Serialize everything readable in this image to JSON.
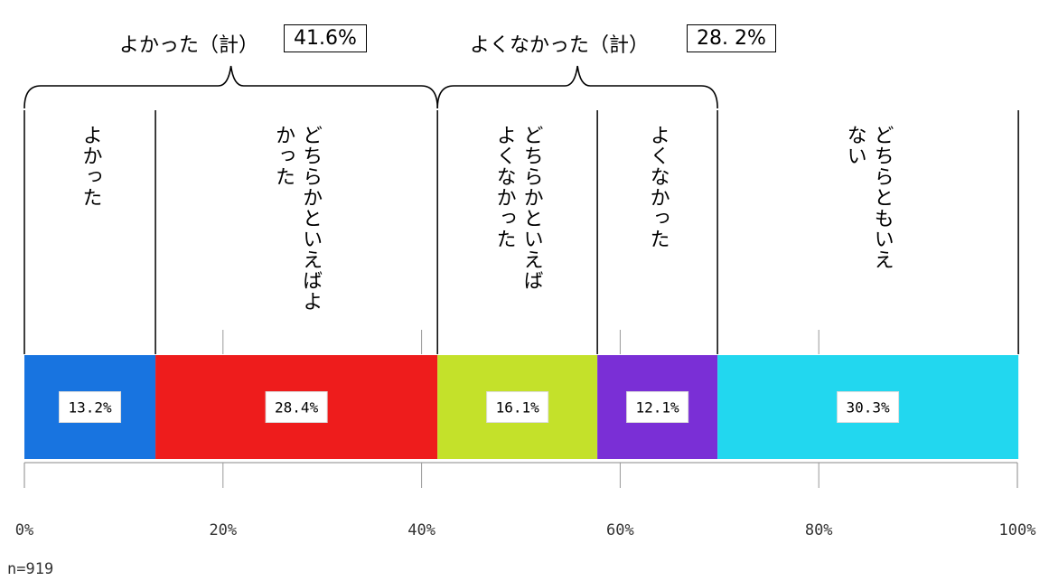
{
  "chart_data": {
    "type": "bar",
    "orientation": "horizontal-stacked-100",
    "categories": [
      "よかった",
      "どちらかといえばよかった",
      "どちらかといえばよくなかった",
      "よくなかった",
      "どちらともいえない"
    ],
    "values": [
      13.2,
      28.4,
      16.1,
      12.1,
      30.3
    ],
    "value_labels": [
      "13.2%",
      "28.4%",
      "16.1%",
      "12.1%",
      "30.3%"
    ],
    "colors": [
      "#1874e0",
      "#ee1c1c",
      "#c4e12a",
      "#7a2fd6",
      "#22d7ef"
    ],
    "xlim": [
      0,
      100
    ],
    "x_ticks": [
      "0%",
      "20%",
      "40%",
      "60%",
      "80%",
      "100%"
    ],
    "group_brackets": [
      {
        "label": "よかった（計）",
        "value": "41.6%"
      },
      {
        "label": "よくなかった（計）",
        "value": "28. 2%"
      }
    ],
    "note": "n=919"
  },
  "category_lines": [
    [
      "よかった"
    ],
    [
      "どちらかといえばよ",
      "かった"
    ],
    [
      "どちらかといえば",
      "よくなかった"
    ],
    [
      "よくなかった"
    ],
    [
      "どちらともいえ",
      "ない"
    ]
  ]
}
